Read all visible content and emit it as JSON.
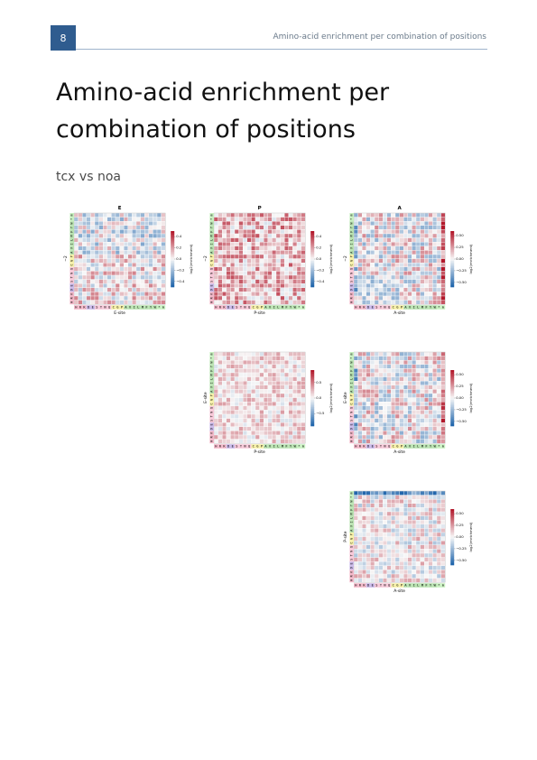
{
  "header": {
    "page_number": "8",
    "running_title": "Amino-acid enrichment per combination of positions"
  },
  "title": "Amino-acid enrichment per combination of positions",
  "subtitle": "tcx vs noa",
  "axis_labels": [
    "H",
    "R",
    "K",
    "D",
    "E",
    "S",
    "T",
    "N",
    "Q",
    "C",
    "G",
    "P",
    "A",
    "V",
    "I",
    "L",
    "M",
    "F",
    "Y",
    "W",
    "*",
    "m"
  ],
  "colorbar_label": "log2(enrichment)",
  "chart_data": [
    {
      "type": "heatmap",
      "title": "E",
      "xlabel": "E-site",
      "ylabel": "−2",
      "color_range": [
        -0.5,
        0.5
      ],
      "ticks": [
        "0.4",
        "0.2",
        "0.0",
        "−0.2",
        "−0.4"
      ],
      "pattern": "mixed-e"
    },
    {
      "type": "heatmap",
      "title": "P",
      "xlabel": "P-site",
      "ylabel": "−2",
      "color_range": [
        -0.5,
        0.5
      ],
      "ticks": [
        "0.4",
        "0.2",
        "0.0",
        "−0.2",
        "−0.4"
      ],
      "pattern": "mostly-positive"
    },
    {
      "type": "heatmap",
      "title": "A",
      "xlabel": "A-site",
      "ylabel": "−2",
      "color_range": [
        -0.6,
        0.6
      ],
      "ticks": [
        "0.50",
        "0.25",
        "0.00",
        "−0.25",
        "−0.50"
      ],
      "pattern": "mixed-a"
    },
    {
      "type": "heatmap",
      "title": "",
      "xlabel": "P-site",
      "ylabel": "E-site",
      "color_range": [
        -0.9,
        0.9
      ],
      "ticks": [
        "0.5",
        "0.0",
        "−0.5"
      ],
      "pattern": "light-positive"
    },
    {
      "type": "heatmap",
      "title": "",
      "xlabel": "A-site",
      "ylabel": "E-site",
      "color_range": [
        -0.6,
        0.6
      ],
      "ticks": [
        "0.50",
        "0.25",
        "0.00",
        "−0.25",
        "−0.50"
      ],
      "pattern": "mixed-a"
    },
    {
      "type": "heatmap",
      "title": "",
      "xlabel": "A-site",
      "ylabel": "P-site",
      "color_range": [
        -0.6,
        0.6
      ],
      "ticks": [
        "0.50",
        "0.25",
        "0.00",
        "−0.25",
        "−0.50"
      ],
      "pattern": "mixed-top"
    }
  ],
  "colors": {
    "badge": "#2f5c8f",
    "positive": "#b2182b",
    "negative": "#2166ac",
    "neutral": "#f7f7f7",
    "label_groups": {
      "HRK": "#f3b8c9",
      "DE": "#c9b8e8",
      "STNQ": "#f7c8d8",
      "CG": "#f6f0a8",
      "P": "#f6f0a8",
      "hydrophobic": "#b8e2b0",
      "stop": "#c8f0c0"
    }
  }
}
